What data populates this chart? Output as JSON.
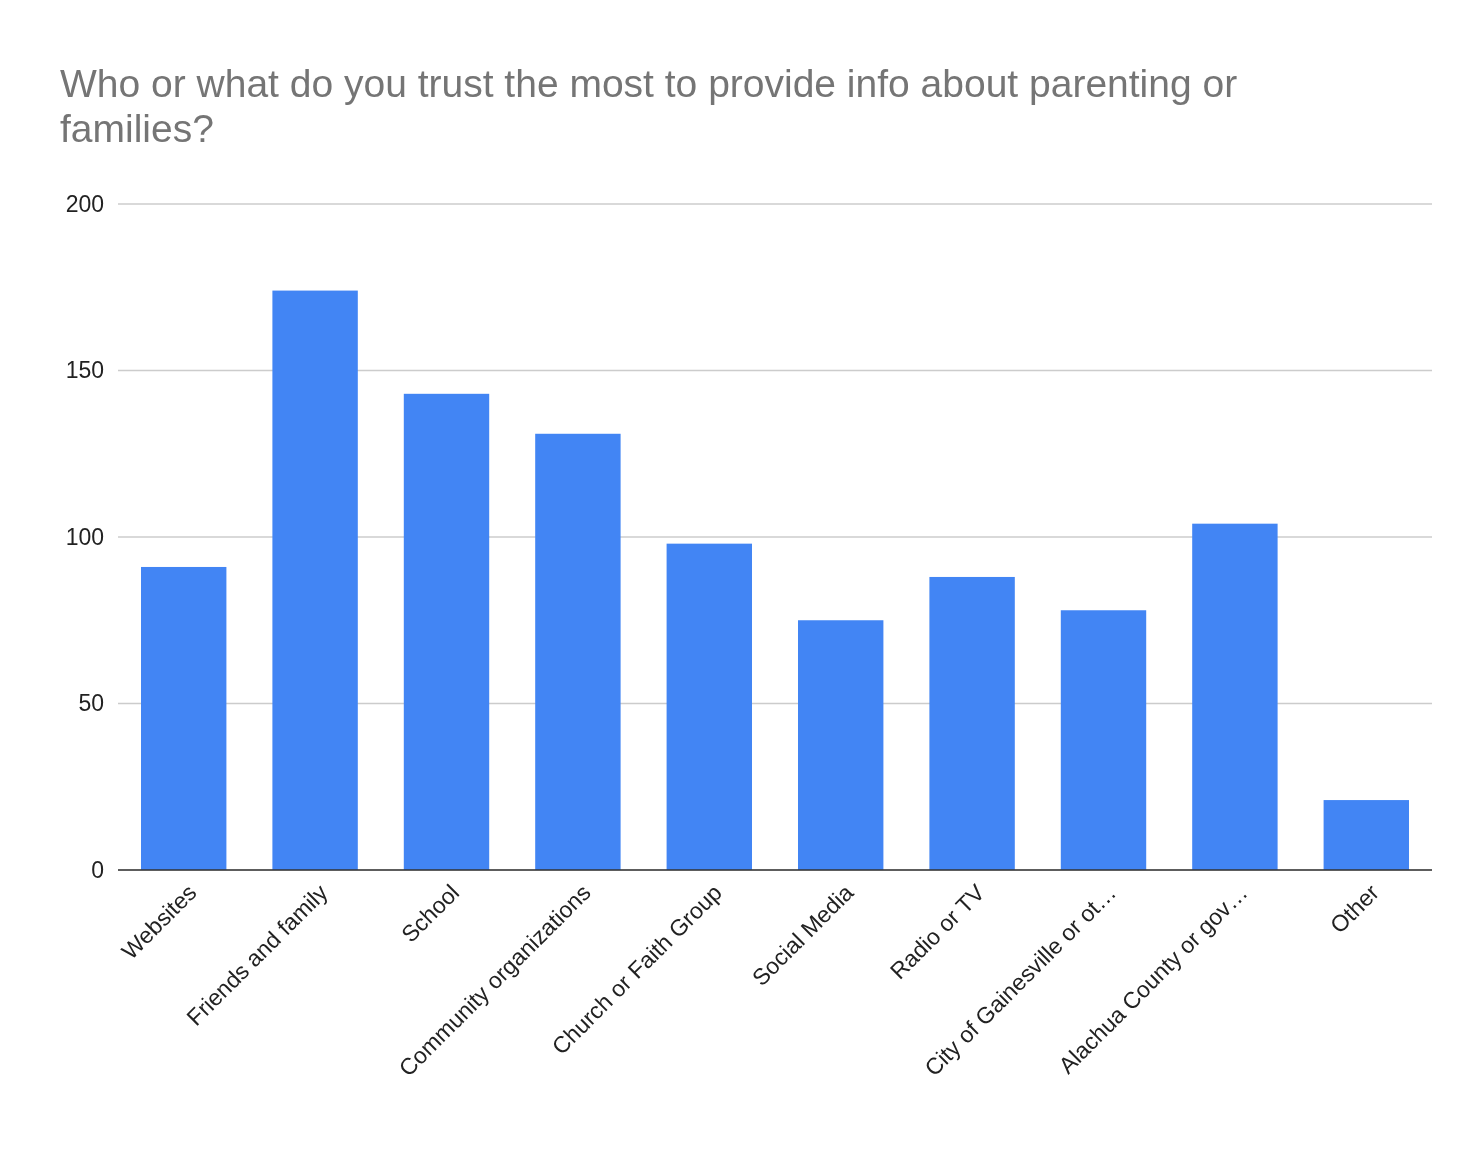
{
  "chart_data": {
    "type": "bar",
    "title": "Who or what do you trust the most to provide info about parenting or families?",
    "categories": [
      "Websites",
      "Friends and family",
      "School",
      "Community organizations",
      "Church or Faith Group",
      "Social Media",
      "Radio or TV",
      "City of Gainesville or ot…",
      "Alachua County or gov…",
      "Other"
    ],
    "values": [
      91,
      174,
      143,
      131,
      98,
      75,
      88,
      78,
      104,
      21
    ],
    "color": "#4285f4",
    "ylim": [
      0,
      200
    ],
    "yticks": [
      0,
      50,
      100,
      150,
      200
    ],
    "grid": "y"
  }
}
